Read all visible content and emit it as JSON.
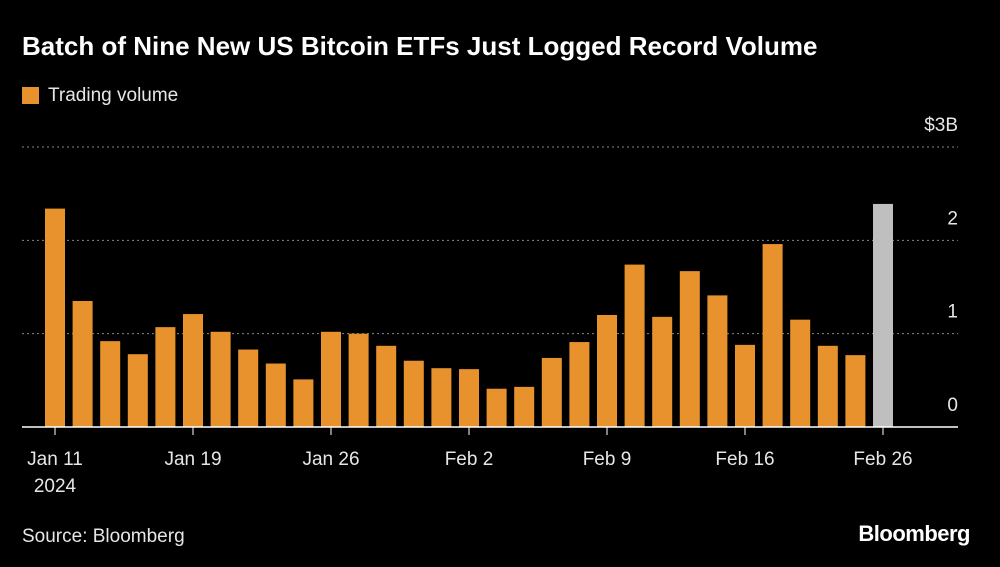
{
  "chart_data": {
    "type": "bar",
    "title": "Batch of Nine New US Bitcoin ETFs Just Logged Record Volume",
    "legend": "Trading volume",
    "source": "Source: Bloomberg",
    "brand": "Bloomberg",
    "categories": [
      "Jan 11",
      null,
      null,
      null,
      null,
      "Jan 19",
      null,
      null,
      null,
      null,
      "Jan 26",
      null,
      null,
      null,
      null,
      "Feb 2",
      null,
      null,
      null,
      null,
      "Feb 9",
      null,
      null,
      null,
      null,
      "Feb 16",
      null,
      null,
      null,
      null,
      "Feb 26"
    ],
    "year_label": "2024",
    "values": [
      2.34,
      1.35,
      0.92,
      0.78,
      1.07,
      1.21,
      1.02,
      0.83,
      0.68,
      0.51,
      1.02,
      1.0,
      0.87,
      0.71,
      0.63,
      0.62,
      0.41,
      0.43,
      0.74,
      0.91,
      1.2,
      1.74,
      1.18,
      1.67,
      1.41,
      0.88,
      1.96,
      1.15,
      0.87,
      0.77,
      2.39
    ],
    "color": "#e8922d",
    "highlight_color": "#bfbfbf",
    "highlight_index": 30,
    "ylim": [
      0,
      3
    ],
    "yticks": [
      0,
      1,
      2,
      {
        "value": 3,
        "label": "$3B"
      }
    ],
    "grid": true
  }
}
